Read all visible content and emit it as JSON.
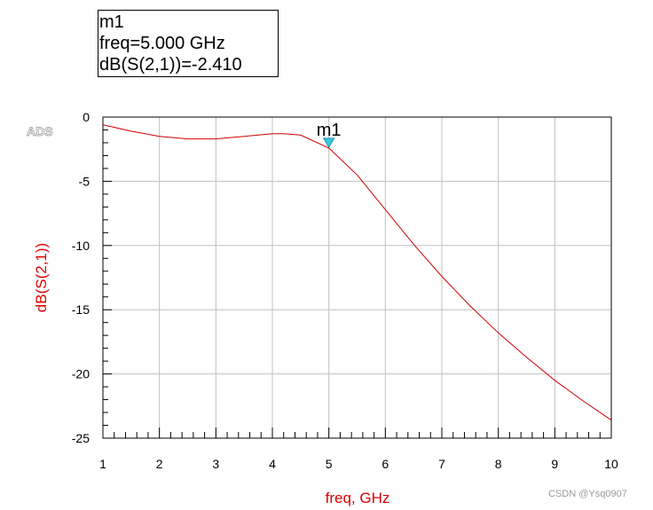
{
  "marker_readout": {
    "name": "m1",
    "freq_text": "freq=5.000 GHz",
    "value_text": "dB(S(2,1))=-2.410"
  },
  "watermarks": {
    "ads": "ADS",
    "credit": "CSDN @Ysq0907"
  },
  "colors": {
    "trace": "#cc0000",
    "axis_title": "#dd0000",
    "grid": "#c0c0c0",
    "marker": "#33ccdd"
  },
  "chart_data": {
    "type": "line",
    "xlabel": "freq, GHz",
    "ylabel": "dB(S(2,1))",
    "xlim": [
      1,
      10
    ],
    "ylim": [
      -25,
      0
    ],
    "grid": true,
    "x_ticks": [
      1,
      2,
      3,
      4,
      5,
      6,
      7,
      8,
      9,
      10
    ],
    "x_tick_labels": [
      "1",
      "2",
      "3",
      "4",
      "5",
      "6",
      "7",
      "8",
      "9",
      "10"
    ],
    "y_ticks": [
      0,
      -5,
      -10,
      -15,
      -20,
      -25
    ],
    "y_tick_labels": [
      "0",
      "-5",
      "-10",
      "-15",
      "-20",
      "-25"
    ],
    "series": [
      {
        "x": [
          1,
          1.5,
          2,
          2.5,
          3,
          3.5,
          4,
          4.2,
          4.5,
          5,
          5.5,
          6,
          6.5,
          7,
          7.5,
          8,
          8.5,
          9,
          9.5,
          10
        ],
        "y": [
          -0.6,
          -1.1,
          -1.5,
          -1.7,
          -1.7,
          -1.5,
          -1.3,
          -1.3,
          -1.4,
          -2.41,
          -4.5,
          -7.2,
          -9.9,
          -12.4,
          -14.7,
          -16.8,
          -18.7,
          -20.5,
          -22.1,
          -23.6
        ]
      }
    ],
    "markers": [
      {
        "name": "m1",
        "x": 5.0,
        "y": -2.41
      }
    ]
  }
}
